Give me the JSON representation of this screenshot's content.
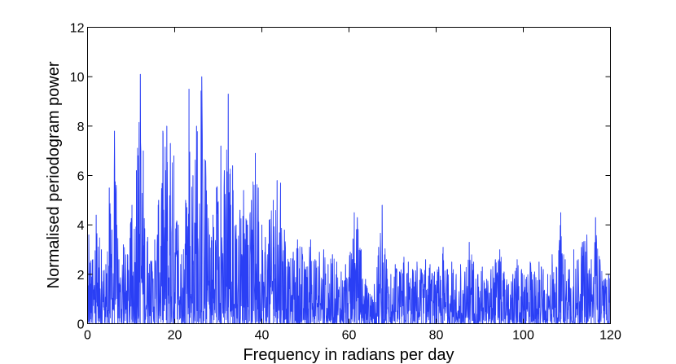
{
  "chart_data": {
    "type": "line",
    "title": "",
    "xlabel": "Frequency in radians per day",
    "ylabel": "Normalised periodogram power",
    "xlim": [
      0,
      120
    ],
    "ylim": [
      0,
      12
    ],
    "xticks": [
      0,
      20,
      40,
      60,
      80,
      100,
      120
    ],
    "yticks": [
      0,
      2,
      4,
      6,
      8,
      10,
      12
    ],
    "x_tick_labels": [
      "0",
      "20",
      "40",
      "60",
      "80",
      "100",
      "120"
    ],
    "y_tick_labels": [
      "0",
      "2",
      "4",
      "6",
      "8",
      "10",
      "12"
    ],
    "grid": false,
    "legend": "none",
    "color": "#2a3ff5",
    "series": [
      {
        "peaks": [
          [
            0.3,
            3.6
          ],
          [
            1.2,
            2.6
          ],
          [
            2.0,
            4.4
          ],
          [
            3.2,
            3.0
          ],
          [
            4.2,
            2.4
          ],
          [
            5.0,
            5.5
          ],
          [
            5.6,
            3.8
          ],
          [
            6.2,
            7.8
          ],
          [
            7.2,
            2.6
          ],
          [
            8.2,
            3.2
          ],
          [
            9.2,
            2.8
          ],
          [
            10.2,
            4.8
          ],
          [
            11.2,
            6.2
          ],
          [
            12.1,
            10.1
          ],
          [
            12.8,
            7.0
          ],
          [
            13.8,
            3.5
          ],
          [
            14.6,
            2.5
          ],
          [
            15.4,
            3.4
          ],
          [
            16.3,
            5.0
          ],
          [
            17.3,
            7.8
          ],
          [
            18.2,
            8.0
          ],
          [
            19.0,
            7.3
          ],
          [
            19.8,
            6.8
          ],
          [
            20.8,
            4.0
          ],
          [
            21.6,
            2.8
          ],
          [
            22.5,
            5.0
          ],
          [
            23.3,
            9.5
          ],
          [
            24.2,
            6.0
          ],
          [
            25.0,
            8.0
          ],
          [
            26.2,
            10.0
          ],
          [
            27.1,
            6.6
          ],
          [
            28.0,
            3.6
          ],
          [
            28.8,
            4.4
          ],
          [
            29.6,
            5.5
          ],
          [
            30.6,
            7.2
          ],
          [
            31.4,
            6.2
          ],
          [
            32.3,
            9.3
          ],
          [
            33.3,
            6.4
          ],
          [
            34.1,
            4.0
          ],
          [
            35.0,
            4.6
          ],
          [
            35.8,
            5.4
          ],
          [
            36.7,
            4.0
          ],
          [
            37.6,
            5.0
          ],
          [
            38.5,
            6.9
          ],
          [
            39.2,
            5.5
          ],
          [
            40.0,
            4.0
          ],
          [
            40.8,
            3.5
          ],
          [
            41.7,
            4.2
          ],
          [
            42.6,
            5.0
          ],
          [
            43.5,
            5.8
          ],
          [
            44.3,
            5.7
          ],
          [
            45.2,
            3.8
          ],
          [
            46.2,
            2.5
          ],
          [
            47.2,
            2.9
          ],
          [
            48.2,
            3.4
          ],
          [
            49.2,
            3.1
          ],
          [
            50.2,
            2.3
          ],
          [
            51.2,
            3.4
          ],
          [
            52.2,
            2.6
          ],
          [
            53.2,
            2.9
          ],
          [
            54.2,
            3.0
          ],
          [
            55.2,
            2.4
          ],
          [
            56.2,
            2.8
          ],
          [
            57.2,
            2.5
          ],
          [
            58.2,
            2.1
          ],
          [
            59.2,
            2.4
          ],
          [
            60.3,
            2.9
          ],
          [
            61.2,
            4.5
          ],
          [
            61.9,
            4.3
          ],
          [
            62.8,
            3.0
          ],
          [
            63.8,
            1.8
          ],
          [
            64.8,
            1.2
          ],
          [
            65.8,
            1.6
          ],
          [
            66.8,
            3.1
          ],
          [
            67.6,
            4.8
          ],
          [
            68.6,
            2.6
          ],
          [
            69.6,
            2.0
          ],
          [
            70.6,
            2.4
          ],
          [
            71.6,
            2.1
          ],
          [
            72.6,
            2.7
          ],
          [
            73.6,
            2.5
          ],
          [
            74.6,
            2.2
          ],
          [
            75.6,
            2.5
          ],
          [
            76.6,
            2.2
          ],
          [
            77.6,
            2.6
          ],
          [
            78.6,
            2.4
          ],
          [
            79.6,
            2.1
          ],
          [
            80.6,
            2.3
          ],
          [
            81.6,
            3.1
          ],
          [
            82.6,
            2.2
          ],
          [
            83.6,
            2.5
          ],
          [
            84.6,
            2.0
          ],
          [
            85.6,
            2.4
          ],
          [
            86.6,
            2.1
          ],
          [
            87.6,
            3.3
          ],
          [
            88.6,
            2.5
          ],
          [
            89.6,
            2.0
          ],
          [
            90.6,
            2.3
          ],
          [
            91.6,
            1.8
          ],
          [
            92.6,
            2.2
          ],
          [
            93.6,
            2.6
          ],
          [
            94.6,
            3.0
          ],
          [
            95.6,
            2.1
          ],
          [
            96.6,
            1.6
          ],
          [
            97.6,
            2.0
          ],
          [
            98.6,
            2.6
          ],
          [
            99.6,
            2.2
          ],
          [
            100.6,
            1.8
          ],
          [
            101.6,
            2.5
          ],
          [
            102.6,
            2.1
          ],
          [
            103.6,
            2.5
          ],
          [
            104.6,
            2.2
          ],
          [
            105.6,
            2.0
          ],
          [
            106.6,
            2.8
          ],
          [
            107.6,
            2.3
          ],
          [
            108.6,
            4.5
          ],
          [
            109.6,
            2.6
          ],
          [
            110.6,
            2.2
          ],
          [
            111.6,
            3.0
          ],
          [
            112.6,
            2.6
          ],
          [
            113.6,
            3.3
          ],
          [
            114.6,
            3.6
          ],
          [
            115.6,
            2.6
          ],
          [
            116.6,
            4.3
          ],
          [
            117.6,
            2.6
          ],
          [
            118.6,
            1.8
          ],
          [
            119.6,
            2.0
          ]
        ]
      }
    ]
  }
}
